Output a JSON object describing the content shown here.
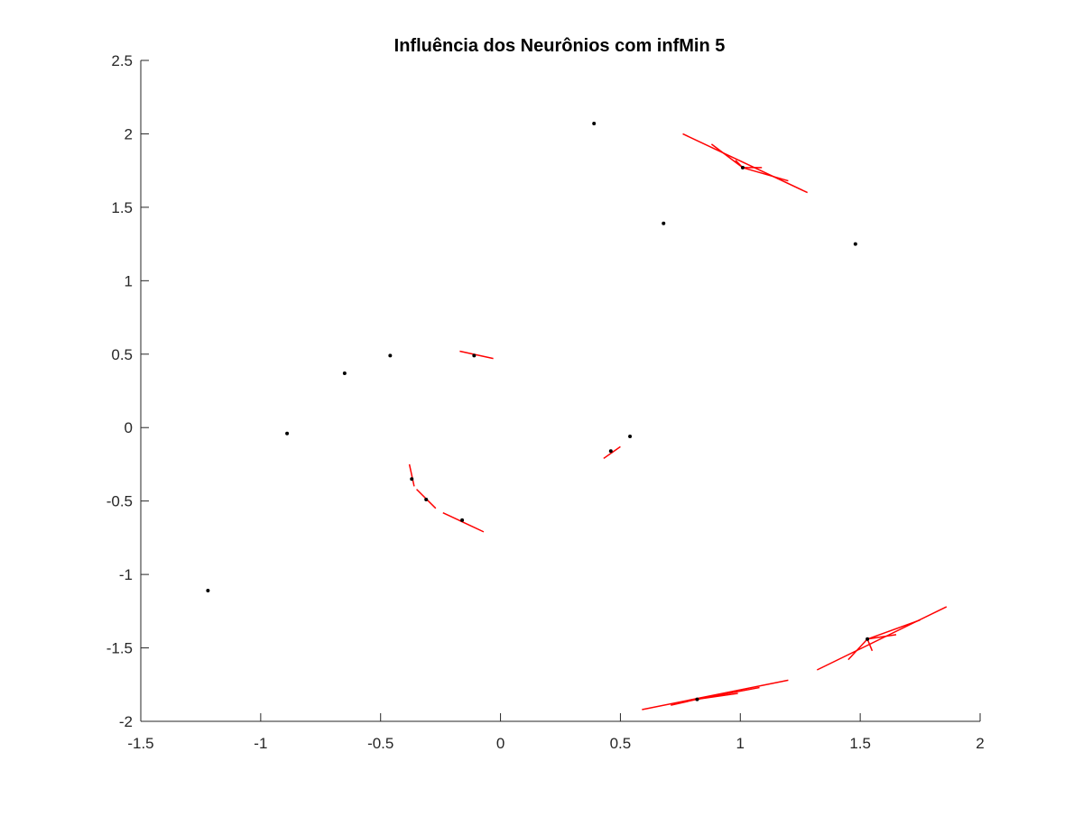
{
  "chart_data": {
    "type": "scatter",
    "title": "Influência dos Neurônios com infMin 5",
    "xlabel": "",
    "ylabel": "",
    "xlim": [
      -1.5,
      2
    ],
    "ylim": [
      -2,
      2.5
    ],
    "x_ticks": [
      -1.5,
      -1,
      -0.5,
      0,
      0.5,
      1,
      1.5,
      2
    ],
    "x_tick_labels": [
      "-1.5",
      "-1",
      "-0.5",
      "0",
      "0.5",
      "1",
      "1.5",
      "2"
    ],
    "y_ticks": [
      -2,
      -1.5,
      -1,
      -0.5,
      0,
      0.5,
      1,
      1.5,
      2,
      2.5
    ],
    "y_tick_labels": [
      "-2",
      "-1.5",
      "-1",
      "-0.5",
      "0",
      "0.5",
      "1",
      "1.5",
      "2",
      "2.5"
    ],
    "grid": false,
    "colors": {
      "points": "#000000",
      "segments": "#ff0000",
      "axes": "#262626"
    },
    "points": [
      {
        "x": -1.22,
        "y": -1.11
      },
      {
        "x": -0.89,
        "y": -0.04
      },
      {
        "x": -0.65,
        "y": 0.37
      },
      {
        "x": -0.46,
        "y": 0.49
      },
      {
        "x": -0.11,
        "y": 0.49
      },
      {
        "x": 0.39,
        "y": 2.07
      },
      {
        "x": 0.68,
        "y": 1.39
      },
      {
        "x": 0.54,
        "y": -0.06
      },
      {
        "x": 0.46,
        "y": -0.16
      },
      {
        "x": 1.01,
        "y": 1.77
      },
      {
        "x": 1.48,
        "y": 1.25
      },
      {
        "x": 1.53,
        "y": -1.44
      },
      {
        "x": 0.82,
        "y": -1.85
      },
      {
        "x": -0.16,
        "y": -0.63
      },
      {
        "x": -0.31,
        "y": -0.49
      },
      {
        "x": -0.37,
        "y": -0.35
      }
    ],
    "segments": [
      {
        "x1": 0.76,
        "y1": 2.0,
        "x2": 1.28,
        "y2": 1.6
      },
      {
        "x1": 0.88,
        "y1": 1.93,
        "x2": 1.01,
        "y2": 1.77
      },
      {
        "x1": 0.98,
        "y1": 1.82,
        "x2": 1.01,
        "y2": 1.77
      },
      {
        "x1": 1.01,
        "y1": 1.77,
        "x2": 1.09,
        "y2": 1.77
      },
      {
        "x1": 1.01,
        "y1": 1.77,
        "x2": 1.2,
        "y2": 1.68
      },
      {
        "x1": -0.17,
        "y1": 0.52,
        "x2": -0.03,
        "y2": 0.47
      },
      {
        "x1": 0.43,
        "y1": -0.21,
        "x2": 0.5,
        "y2": -0.13
      },
      {
        "x1": -0.38,
        "y1": -0.25,
        "x2": -0.36,
        "y2": -0.4
      },
      {
        "x1": -0.35,
        "y1": -0.42,
        "x2": -0.27,
        "y2": -0.55
      },
      {
        "x1": -0.24,
        "y1": -0.58,
        "x2": -0.07,
        "y2": -0.71
      },
      {
        "x1": 1.32,
        "y1": -1.65,
        "x2": 1.86,
        "y2": -1.22
      },
      {
        "x1": 1.53,
        "y1": -1.44,
        "x2": 1.75,
        "y2": -1.31
      },
      {
        "x1": 1.53,
        "y1": -1.44,
        "x2": 1.65,
        "y2": -1.41
      },
      {
        "x1": 1.53,
        "y1": -1.44,
        "x2": 1.55,
        "y2": -1.52
      },
      {
        "x1": 1.45,
        "y1": -1.58,
        "x2": 1.53,
        "y2": -1.44
      },
      {
        "x1": 0.59,
        "y1": -1.92,
        "x2": 1.2,
        "y2": -1.72
      },
      {
        "x1": 0.71,
        "y1": -1.89,
        "x2": 0.82,
        "y2": -1.85
      },
      {
        "x1": 0.82,
        "y1": -1.85,
        "x2": 1.08,
        "y2": -1.77
      },
      {
        "x1": 0.82,
        "y1": -1.85,
        "x2": 0.99,
        "y2": -1.81
      }
    ]
  }
}
